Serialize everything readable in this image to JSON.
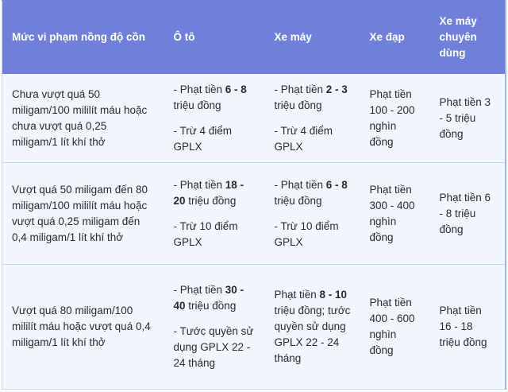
{
  "table": {
    "headers": [
      "Mức vi phạm nồng độ cồn",
      "Ô tô",
      "Xe máy",
      "Xe đạp",
      "Xe máy chuyên dùng"
    ],
    "rows": [
      [
        [
          [
            "Chưa vượt quá 50 miligam/100 mililít máu hoặc chưa vượt quá 0,25 miligam/1 lít khí thở"
          ]
        ],
        [
          [
            "- Phạt tiền ",
            {
              "bold": "6 - 8"
            },
            " triệu đồng"
          ],
          [
            "- Trừ 4 điểm GPLX"
          ]
        ],
        [
          [
            "- Phạt tiền ",
            {
              "bold": "2 - 3"
            },
            " triệu đồng"
          ],
          [
            "- Trừ 4 điểm GPLX"
          ]
        ],
        [
          [
            "Phạt tiền 100 - 200 nghìn đồng"
          ]
        ],
        [
          [
            "Phạt tiền 3 - 5 triệu đồng"
          ]
        ]
      ],
      [
        [
          [
            "Vượt quá 50 miligam đến 80 miligam/100 mililít máu hoặc vượt quá 0,25 miligam đến 0,4 miligam/1 lít khí thở"
          ]
        ],
        [
          [
            "- Phạt tiền ",
            {
              "bold": "18 - 20"
            },
            " triệu đồng"
          ],
          [
            "- Trừ 10 điểm GPLX"
          ]
        ],
        [
          [
            "- Phạt tiền ",
            {
              "bold": "6 - 8"
            },
            " triệu đồng"
          ],
          [
            "- Trừ 10 điểm GPLX"
          ]
        ],
        [
          [
            "Phạt tiền 300 - 400 nghìn đồng"
          ]
        ],
        [
          [
            "Phạt tiền 6 - 8 triệu đồng"
          ]
        ]
      ],
      [
        [
          [
            "Vượt quá 80 miligam/100 mililít máu hoặc vượt quá 0,4 miligam/1 lít khí thở"
          ]
        ],
        [
          [
            "- Phạt tiền ",
            {
              "bold": "30 - 40"
            },
            " triệu đồng"
          ],
          [
            "- Tước quyền sử dụng GPLX 22 - 24 tháng"
          ]
        ],
        [
          [
            "Phạt tiền ",
            {
              "bold": "8 - 10"
            },
            " triệu đồng; tước quyền sử dụng GPLX 22 - 24 tháng"
          ]
        ],
        [
          [
            "Phạt tiền 400 - 600 nghìn đồng"
          ]
        ],
        [
          [
            "Phạt tiền 16 - 18 triệu đồng"
          ]
        ]
      ]
    ]
  }
}
